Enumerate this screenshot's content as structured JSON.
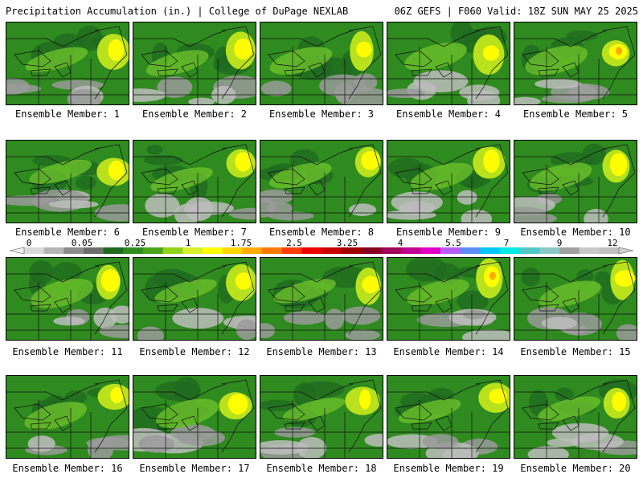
{
  "header": {
    "title": "Precipitation Accumulation (in.) | College of DuPage NEXLAB",
    "run_info": "06Z GEFS | F060 Valid: 18Z SUN MAY 25 2025"
  },
  "panels": [
    {
      "label": "Ensemble Member: 1",
      "seed": 11
    },
    {
      "label": "Ensemble Member: 2",
      "seed": 23
    },
    {
      "label": "Ensemble Member: 3",
      "seed": 37
    },
    {
      "label": "Ensemble Member: 4",
      "seed": 41
    },
    {
      "label": "Ensemble Member: 5",
      "seed": 53
    },
    {
      "label": "Ensemble Member: 6",
      "seed": 67
    },
    {
      "label": "Ensemble Member: 7",
      "seed": 71
    },
    {
      "label": "Ensemble Member: 8",
      "seed": 83
    },
    {
      "label": "Ensemble Member: 9",
      "seed": 97
    },
    {
      "label": "Ensemble Member: 10",
      "seed": 101
    },
    {
      "label": "Ensemble Member: 11",
      "seed": 113
    },
    {
      "label": "Ensemble Member: 12",
      "seed": 127
    },
    {
      "label": "Ensemble Member: 13",
      "seed": 131
    },
    {
      "label": "Ensemble Member: 14",
      "seed": 149
    },
    {
      "label": "Ensemble Member: 15",
      "seed": 151
    },
    {
      "label": "Ensemble Member: 16",
      "seed": 163
    },
    {
      "label": "Ensemble Member: 17",
      "seed": 173
    },
    {
      "label": "Ensemble Member: 18",
      "seed": 181
    },
    {
      "label": "Ensemble Member: 19",
      "seed": 191
    },
    {
      "label": "Ensemble Member: 20",
      "seed": 197
    }
  ],
  "colorbar": {
    "tick_labels": [
      "0",
      "0.05",
      "0.25",
      "1",
      "1.75",
      "2.5",
      "3.25",
      "4",
      "5.5",
      "7",
      "9",
      "12"
    ],
    "colors": [
      "#d9d9d9",
      "#b5b5b5",
      "#8c8c8c",
      "#6e6e6e",
      "#1f6a1f",
      "#2f8a1f",
      "#4aa51c",
      "#8fd21a",
      "#d8ef2a",
      "#fffd00",
      "#ffd400",
      "#ffaa00",
      "#ff7a00",
      "#ff3d00",
      "#ee0000",
      "#c80000",
      "#a00000",
      "#880020",
      "#a0005a",
      "#c00090",
      "#e000c8",
      "#b85cff",
      "#5c8cff",
      "#00c8ff",
      "#00e8e8",
      "#50c8c8",
      "#8cc8c8",
      "#a0a0a0",
      "#c8c8c8",
      "#bfbfbf"
    ]
  }
}
